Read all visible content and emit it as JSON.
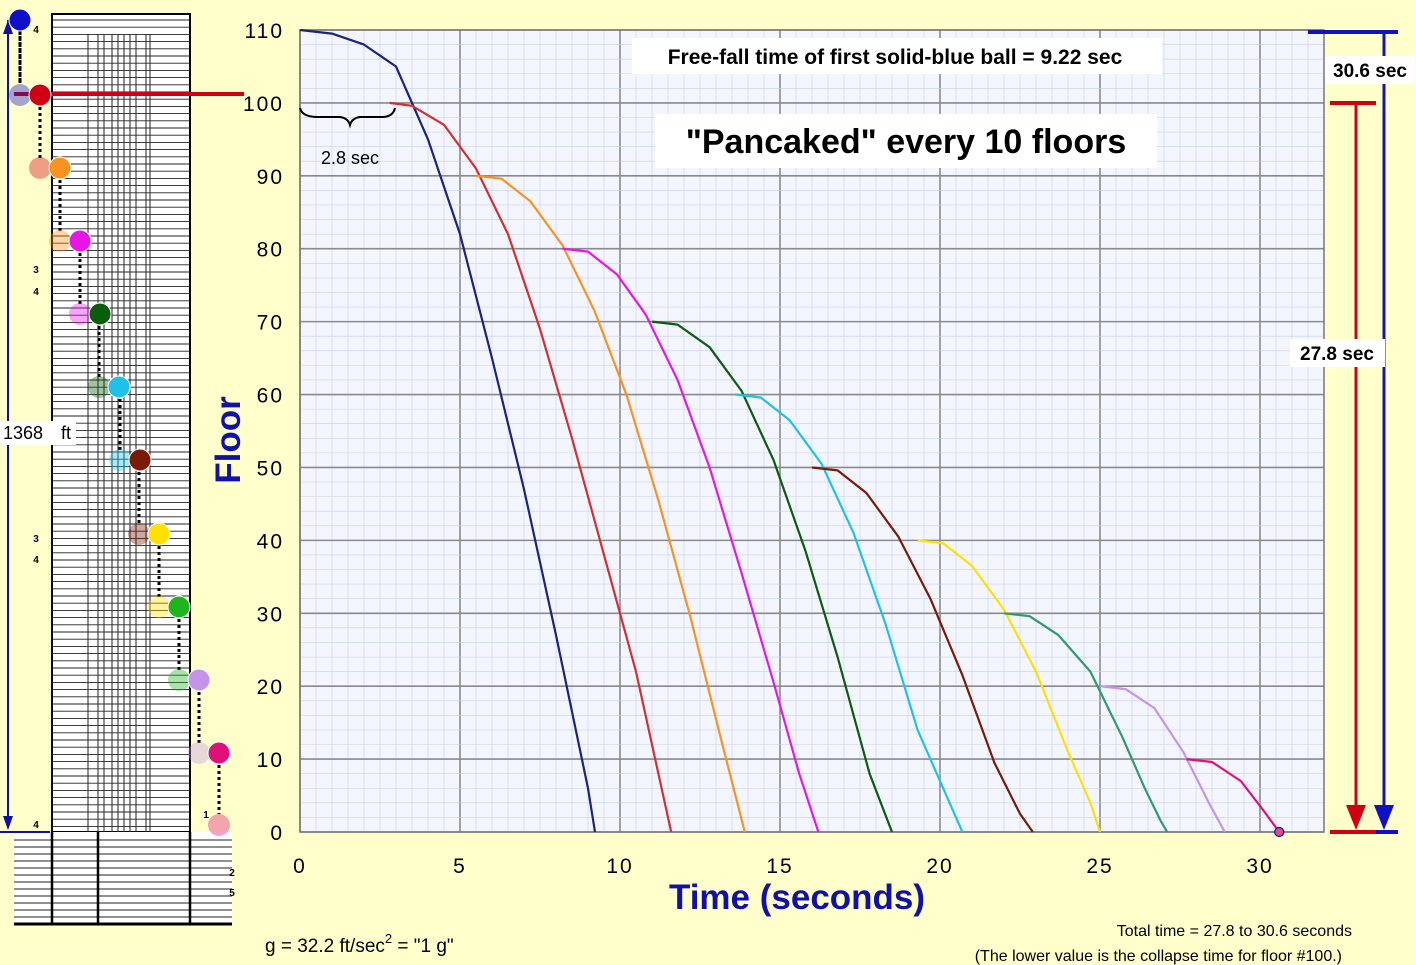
{
  "chart_data": {
    "type": "line",
    "title": "\"Pancaked\" every 10 floors",
    "annotation_top": "Free-fall time of first solid-blue ball  =  9.22 sec",
    "xlabel": "Time  (seconds)",
    "ylabel": "Floor",
    "xlim": [
      0,
      32
    ],
    "ylim": [
      0,
      110
    ],
    "x_ticks": [
      "0",
      "5",
      "10",
      "15",
      "20",
      "25",
      "30"
    ],
    "y_ticks": [
      "0",
      "10",
      "20",
      "30",
      "40",
      "50",
      "60",
      "70",
      "80",
      "90",
      "100",
      "110"
    ],
    "grid": true,
    "series": [
      {
        "color": "#1a237e",
        "x": [
          0,
          1,
          2,
          3,
          4,
          5,
          6,
          7,
          8,
          9,
          9.22
        ],
        "y": [
          110,
          109.5,
          108,
          105,
          95,
          82,
          65,
          47,
          27,
          6,
          0
        ]
      },
      {
        "color": "#d32f2f",
        "x": [
          2.8,
          3.5,
          4.5,
          5.5,
          6.5,
          7.5,
          8.5,
          9.5,
          10.5,
          11.2,
          11.6
        ],
        "y": [
          100,
          99.6,
          97,
          91,
          82,
          69,
          54,
          38,
          22,
          8,
          0
        ]
      },
      {
        "color": "#f7931e",
        "x": [
          5.5,
          6.3,
          7.2,
          8.2,
          9.2,
          10.2,
          11.2,
          12.2,
          13.2,
          13.9
        ],
        "y": [
          90,
          89.6,
          86.5,
          80.5,
          71.5,
          60,
          45.5,
          29.5,
          12,
          0
        ]
      },
      {
        "color": "#e815e8",
        "x": [
          8.2,
          9,
          9.9,
          10.8,
          11.8,
          12.8,
          13.8,
          14.8,
          15.6,
          16.2
        ],
        "y": [
          80,
          79.6,
          76.5,
          71,
          62,
          50,
          35.5,
          20.5,
          8,
          0
        ]
      },
      {
        "color": "#0b5c0b",
        "x": [
          11.0,
          11.8,
          12.8,
          13.8,
          14.8,
          15.8,
          16.8,
          17.8,
          18.5
        ],
        "y": [
          70,
          69.6,
          66.5,
          60.5,
          51,
          38.5,
          24,
          8,
          0
        ]
      },
      {
        "color": "#1ec2e8",
        "x": [
          13.6,
          14.4,
          15.3,
          16.3,
          17.3,
          18.3,
          19.3,
          20.3,
          20.7
        ],
        "y": [
          60,
          59.6,
          56.5,
          50.5,
          41,
          28.5,
          14,
          4,
          0
        ]
      },
      {
        "color": "#7b1a05",
        "x": [
          16.0,
          16.8,
          17.7,
          18.7,
          19.7,
          20.7,
          21.7,
          22.5,
          22.9
        ],
        "y": [
          50,
          49.6,
          46.5,
          40.5,
          32,
          21.5,
          9.5,
          2.5,
          0
        ]
      },
      {
        "color": "#ffe100",
        "x": [
          19.3,
          20.1,
          21,
          22,
          23,
          24,
          24.7,
          25.0
        ],
        "y": [
          40,
          39.6,
          36.5,
          30.5,
          22,
          11,
          4,
          0
        ]
      },
      {
        "color": "#2e9b6a",
        "x": [
          22.0,
          22.8,
          23.7,
          24.7,
          25.7,
          26.4,
          26.9,
          27.1
        ],
        "y": [
          30,
          29.6,
          27,
          22,
          13,
          6,
          1.5,
          0
        ]
      },
      {
        "color": "#c594ea",
        "x": [
          25.0,
          25.8,
          26.7,
          27.6,
          28.4,
          28.9
        ],
        "y": [
          20,
          19.6,
          17,
          11,
          4,
          0
        ]
      },
      {
        "color": "#e0107a",
        "x": [
          27.7,
          28.5,
          29.4,
          30.1,
          30.6
        ],
        "y": [
          10,
          9.6,
          7,
          3,
          0
        ]
      }
    ],
    "brace_label": "2.8 sec",
    "gravity_note": {
      "prefix": "g = 32.2  ft/sec",
      "sup": "2",
      "suffix": "  = \"1 g\""
    },
    "total_note": {
      "line1": "Total time = 27.8  to 30.6  seconds",
      "line2": "(The lower value is the collapse time for floor #100.)"
    },
    "right_labels": {
      "upper": "30.6 sec",
      "lower": "27.8 sec"
    },
    "tower": {
      "height_label": "1368",
      "height_unit": "ft",
      "ball_colors": [
        "#1010c8",
        "#d00010",
        "#f7931e",
        "#e815e8",
        "#0b5c0b",
        "#1ec2e8",
        "#7b1a05",
        "#ffe100",
        "#1fb51f",
        "#c594ea",
        "#e0107a"
      ],
      "side_marks": [
        "4",
        "3",
        "4",
        "3",
        "4",
        "4",
        "1",
        "2",
        "5"
      ]
    },
    "colors": {
      "background": "#ffffcc",
      "axis_blue": "#1010aa",
      "grid": "#888888",
      "paper": "#f4f6ff"
    }
  }
}
